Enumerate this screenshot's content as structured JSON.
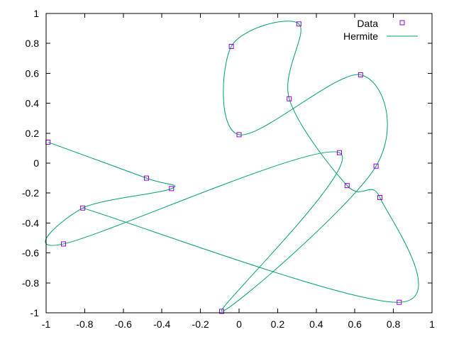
{
  "chart_data": {
    "type": "line",
    "title": "",
    "xlabel": "",
    "ylabel": "",
    "xlim": [
      -1,
      1
    ],
    "ylim": [
      -1,
      1
    ],
    "x_ticks": [
      "-1",
      "-0.8",
      "-0.6",
      "-0.4",
      "-0.2",
      "0",
      "0.2",
      "0.4",
      "0.6",
      "0.8",
      "1"
    ],
    "y_ticks": [
      "-1",
      "-0.8",
      "-0.6",
      "-0.4",
      "-0.2",
      "0",
      "0.2",
      "0.4",
      "0.6",
      "0.8",
      "1"
    ],
    "grid": false,
    "legend_position": "top-right",
    "series": [
      {
        "name": "Data",
        "style": "points",
        "marker": "square",
        "color": "#9400d3",
        "x": [
          -0.99,
          -0.48,
          -0.35,
          -0.81,
          -0.91,
          0.52,
          -0.09,
          0.71,
          0.63,
          0.0,
          -0.04,
          0.31,
          0.26,
          0.56,
          0.73,
          0.83
        ],
        "y": [
          0.14,
          -0.1,
          -0.17,
          -0.3,
          -0.54,
          0.07,
          -0.99,
          -0.02,
          0.59,
          0.19,
          0.78,
          0.93,
          0.43,
          -0.15,
          -0.23,
          -0.93
        ]
      },
      {
        "name": "Hermite",
        "style": "line",
        "color": "#009e73",
        "x": [
          -0.99,
          -0.48,
          -0.35,
          -0.81,
          -0.91,
          0.52,
          -0.09,
          0.71,
          0.63,
          0.0,
          -0.04,
          0.31,
          0.26,
          0.56,
          0.73,
          0.83,
          -0.81
        ],
        "y": [
          0.14,
          -0.1,
          -0.17,
          -0.3,
          -0.54,
          0.07,
          -0.99,
          -0.02,
          0.59,
          0.19,
          0.78,
          0.93,
          0.43,
          -0.15,
          -0.23,
          -0.93,
          -0.3
        ]
      }
    ]
  }
}
